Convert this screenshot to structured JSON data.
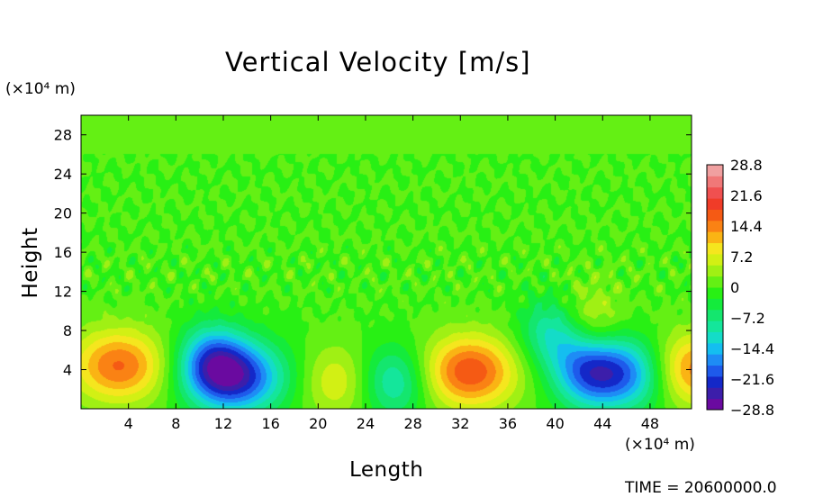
{
  "chart_data": {
    "type": "heatmap",
    "title": "Vertical Velocity [m/s]",
    "xlabel": "Length",
    "ylabel": "Height",
    "x_unit": "(×10⁴ m)",
    "y_unit": "(×10⁴ m)",
    "xlim": [
      0,
      51.5
    ],
    "ylim": [
      0,
      30
    ],
    "x_ticks": [
      4,
      8,
      12,
      16,
      20,
      24,
      28,
      32,
      36,
      40,
      44,
      48
    ],
    "y_ticks": [
      4,
      8,
      12,
      16,
      20,
      24,
      28
    ],
    "colorbar": {
      "range": [
        -28.8,
        28.8
      ],
      "ticks": [
        28.8,
        21.6,
        14.4,
        7.2,
        0,
        -7.2,
        -14.4,
        -21.6,
        -28.8
      ],
      "tick_labels": [
        "28.8",
        "21.6",
        "14.4",
        "7.2",
        "0",
        "−7.2",
        "−14.4",
        "−21.6",
        "−28.8"
      ],
      "levels": 24,
      "colors": [
        "#6a0aa0",
        "#3c1eaa",
        "#1428c8",
        "#1e5aeb",
        "#1e8cf5",
        "#14bef0",
        "#14dcc8",
        "#14e69b",
        "#14e66e",
        "#14eb3c",
        "#28f014",
        "#64f014",
        "#a0f014",
        "#d2f014",
        "#f5e61e",
        "#fab414",
        "#fa8214",
        "#f55a14",
        "#f03c28",
        "#f05050",
        "#f07878",
        "#f0a0a0"
      ]
    },
    "features": [
      {
        "x": 3.2,
        "y": 4.4,
        "value": 16.0,
        "note": "updraft"
      },
      {
        "x": 11.0,
        "y": 5.0,
        "value": -14.0,
        "note": "downdraft"
      },
      {
        "x": 13.2,
        "y": 3.2,
        "value": -22.0,
        "note": "downdraft"
      },
      {
        "x": 21.5,
        "y": 2.8,
        "value": 7.5,
        "note": "weak updraft"
      },
      {
        "x": 26.5,
        "y": 2.8,
        "value": -11.0,
        "note": "downdraft"
      },
      {
        "x": 32.8,
        "y": 3.8,
        "value": 18.0,
        "note": "updraft"
      },
      {
        "x": 40.0,
        "y": 7.8,
        "value": -12.0,
        "note": "downdraft"
      },
      {
        "x": 42.7,
        "y": 9.0,
        "value": 8.0,
        "note": "weak updraft"
      },
      {
        "x": 42.5,
        "y": 3.8,
        "value": -12.0,
        "note": "downdraft"
      },
      {
        "x": 45.8,
        "y": 3.6,
        "value": -20.0,
        "note": "downdraft"
      },
      {
        "x": 51.5,
        "y": 4.0,
        "value": 16.0,
        "note": "updraft"
      }
    ]
  },
  "footer": {
    "time_label": "TIME = 20600000.0"
  }
}
